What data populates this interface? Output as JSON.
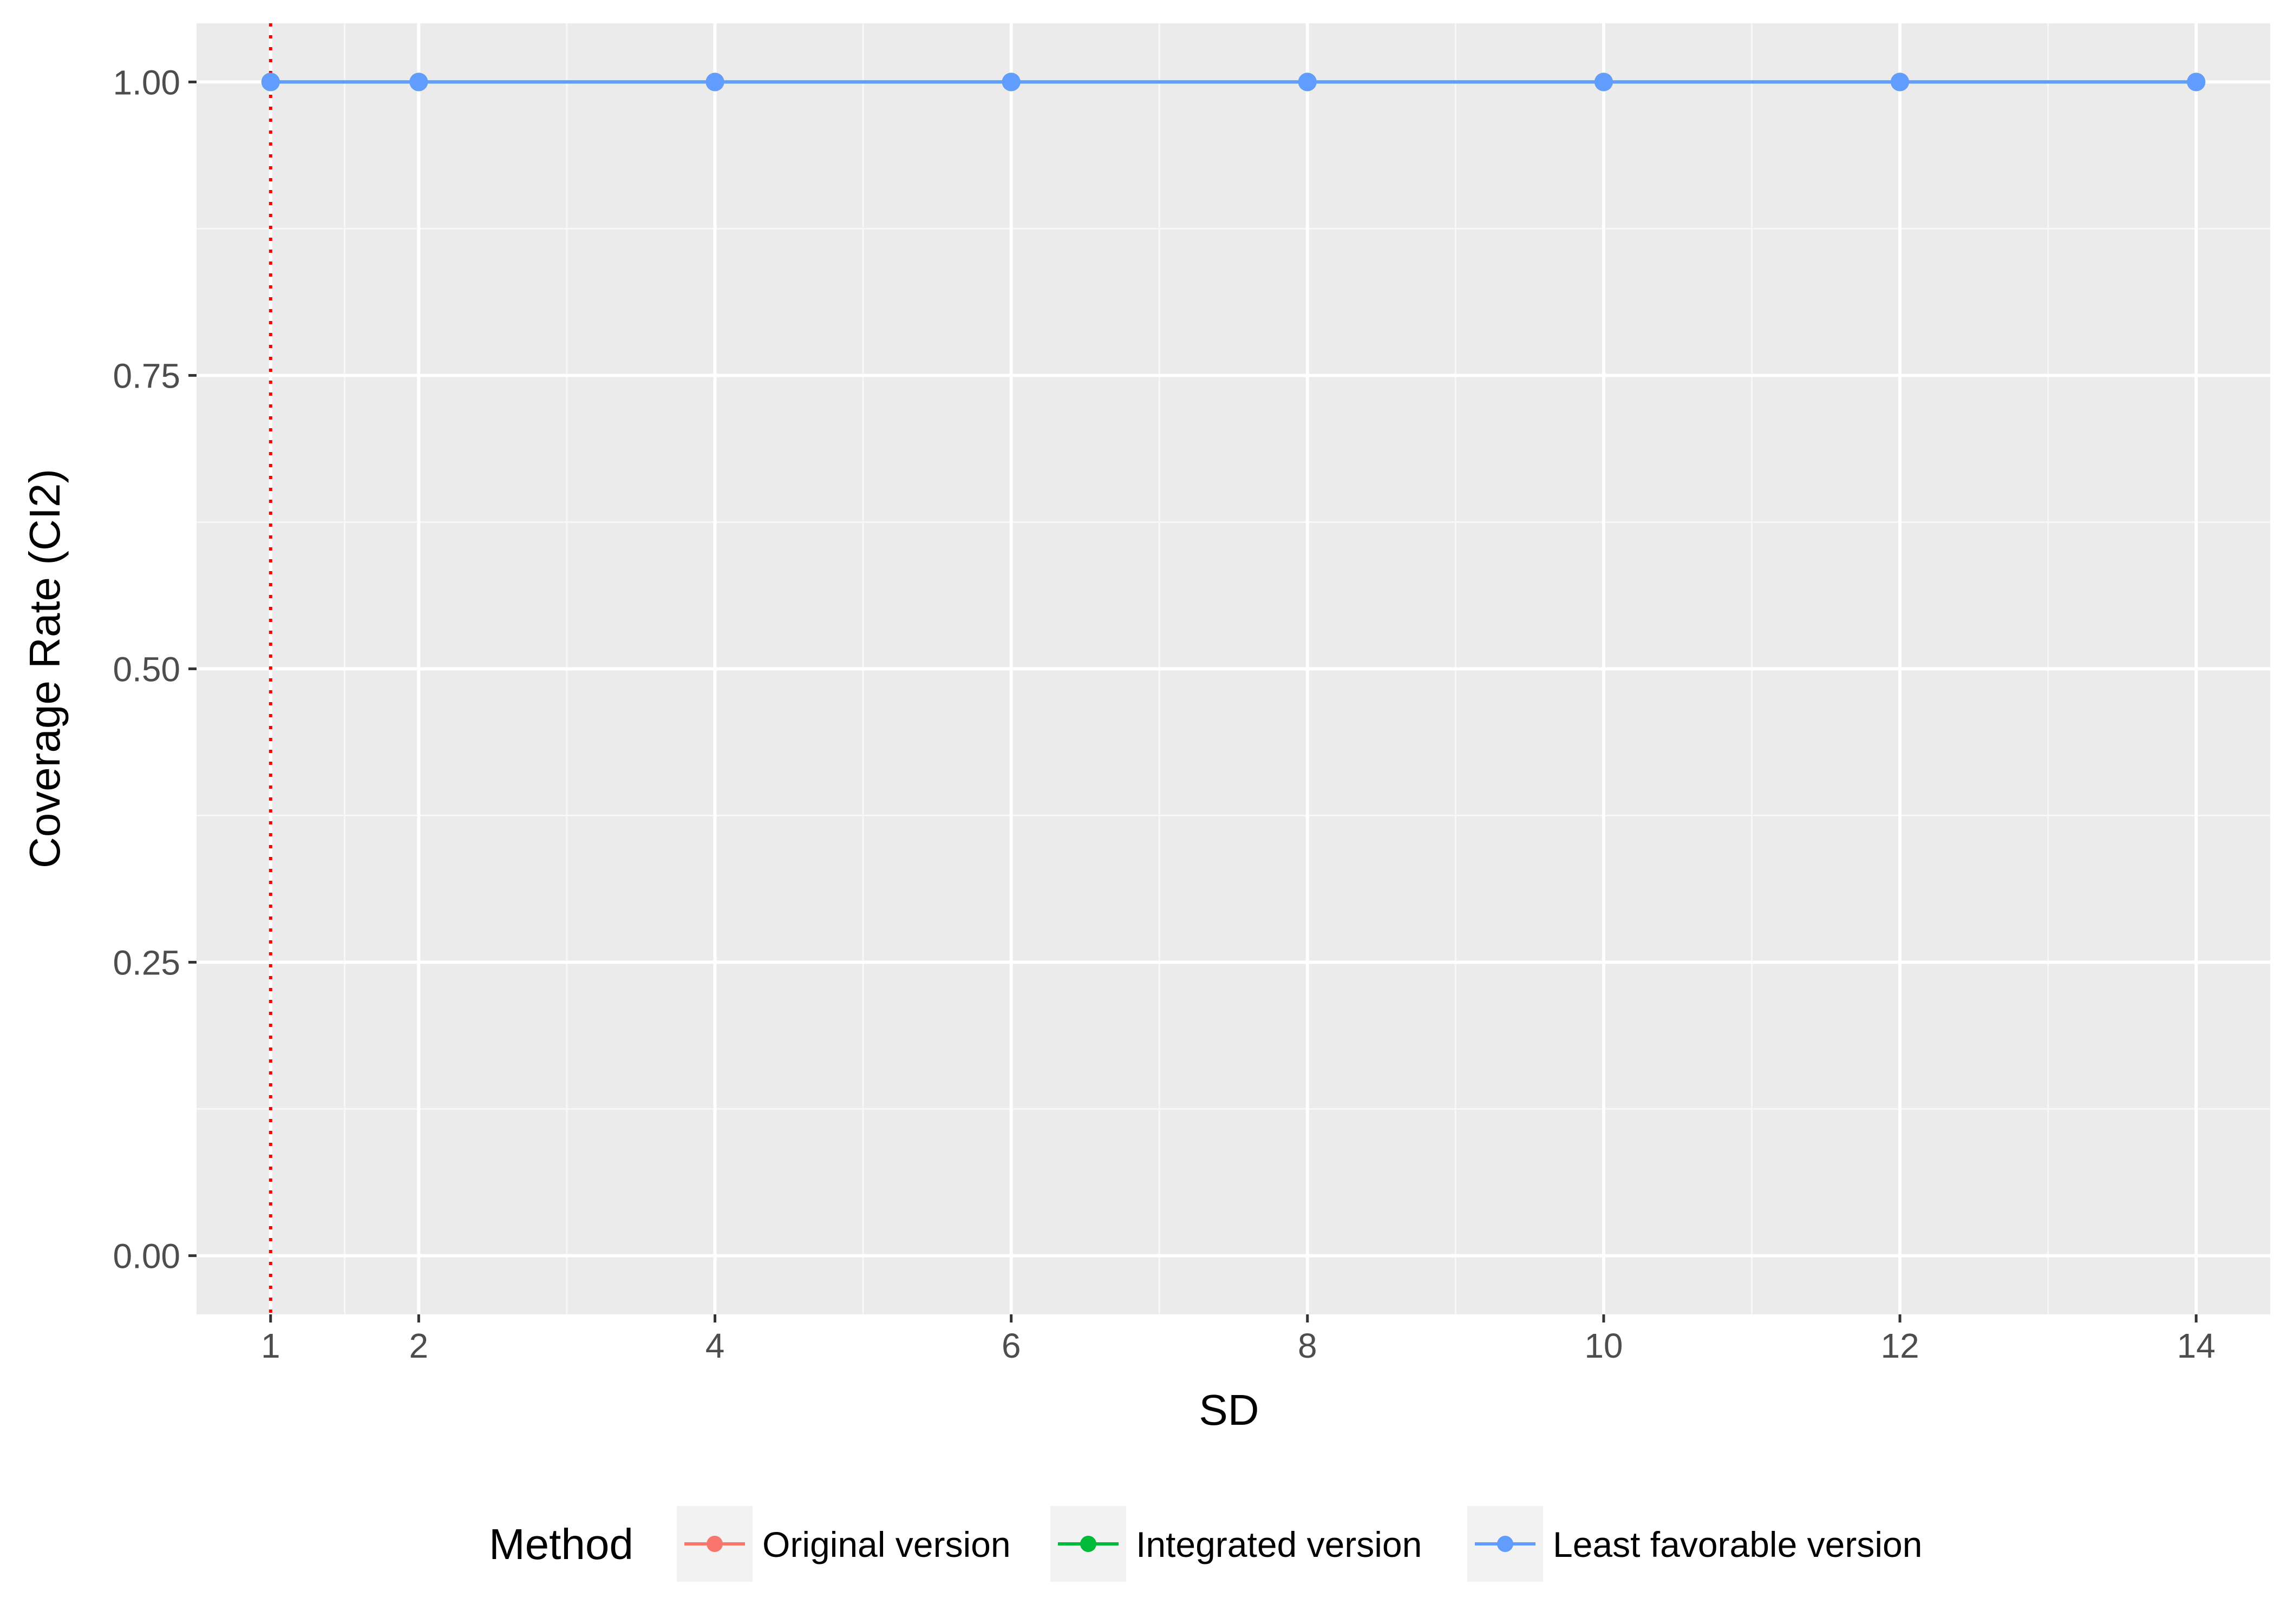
{
  "chart_data": {
    "type": "line",
    "xlabel": "SD",
    "ylabel": "Coverage Rate (CI2)",
    "xlim": [
      0.5,
      14.5
    ],
    "ylim": [
      -0.05,
      1.05
    ],
    "x_ticks": [
      1,
      2,
      4,
      6,
      8,
      10,
      12,
      14
    ],
    "x_minor_ticks": [
      1.5,
      3,
      5,
      7,
      9,
      11,
      13
    ],
    "y_ticks": [
      0.0,
      0.25,
      0.5,
      0.75,
      1.0
    ],
    "y_tick_labels": [
      "0.00",
      "0.25",
      "0.50",
      "0.75",
      "1.00"
    ],
    "y_minor_ticks": [
      0.125,
      0.375,
      0.625,
      0.875
    ],
    "grid": true,
    "reference_line": {
      "x": 1,
      "color": "#FF0000",
      "style": "dotted"
    },
    "legend": {
      "title": "Method",
      "position": "bottom",
      "entries": [
        {
          "label": "Original version",
          "color": "#F8766D"
        },
        {
          "label": "Integrated version",
          "color": "#00BA38"
        },
        {
          "label": "Least favorable version",
          "color": "#619CFF"
        }
      ]
    },
    "x": [
      1,
      2,
      4,
      6,
      8,
      10,
      12,
      14
    ],
    "series": [
      {
        "name": "Original version",
        "color": "#F8766D",
        "values": [
          1,
          1,
          1,
          1,
          1,
          1,
          1,
          1
        ]
      },
      {
        "name": "Integrated version",
        "color": "#00BA38",
        "values": [
          1,
          1,
          1,
          1,
          1,
          1,
          1,
          1
        ]
      },
      {
        "name": "Least favorable version",
        "color": "#619CFF",
        "values": [
          1,
          1,
          1,
          1,
          1,
          1,
          1,
          1
        ]
      }
    ]
  }
}
